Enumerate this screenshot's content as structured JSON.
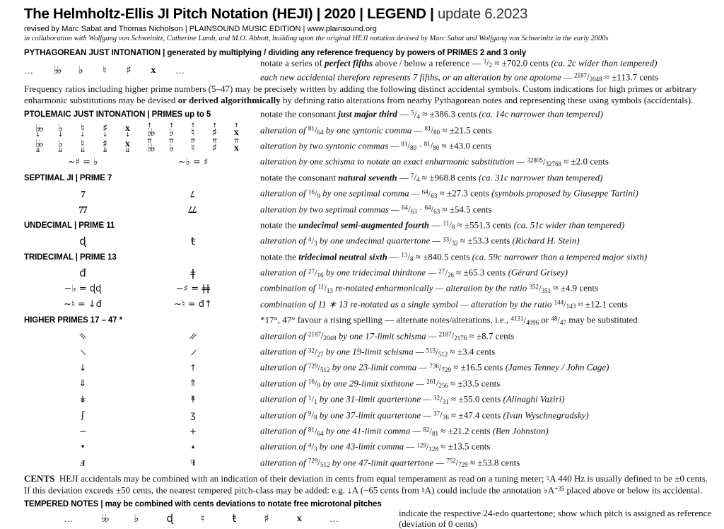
{
  "title": {
    "bold": "The Helmholtz-Ellis JI Pitch Notation (HEJI) | 2020 | LEGEND |",
    "update": "update 6.2023",
    "byline": "revised by Marc Sabat and Thomas Nicholson | PLAINSOUND MUSIC EDITION | www.plainsound.org",
    "collab": "in collaboration with Wolfgang von Schweinitz, Catherine Lamb, and M.O. Abbott, building upon the original HEJI notation devised by Marc Sabat and Wolfgang von Schweinitz in the early 2000s"
  },
  "legend": {
    "rows": [
      {
        "kind": "header",
        "name": "pythagorean-section-header",
        "label": "PYTHAGOREAN JUST INTONATION | generated by multiplying / dividing any reference frequency by powers of PRIMES 2 and 3 only"
      },
      {
        "kind": "sym",
        "layout": "spread",
        "cls": "tall",
        "name": "pythagorean-fifths-row",
        "cells": [
          {
            "t": "…"
          },
          {
            "n": "double-flat-icon",
            "g": "♭♭",
            "cls": "ff"
          },
          {
            "n": "flat-icon",
            "g": "♭"
          },
          {
            "n": "natural-icon",
            "g": "♮"
          },
          {
            "n": "sharp-icon",
            "g": "♯"
          },
          {
            "n": "double-sharp-icon",
            "g": "x",
            "cls": "ds"
          },
          {
            "t": "…"
          }
        ],
        "lines": [
          "notate a series of ***perfect fifths*** above / below a reference — {3/2} ≈ ±702.0 cents *(ca. 2c wider than tempered)*",
          "*each new accidental therefore represents 7 fifths, or an alteration by one apotome —* {2187/2048} ≈ ±113.7 cents"
        ]
      },
      {
        "kind": "para",
        "name": "intro-paragraph",
        "lines": [
          "Frequency ratios including higher prime numbers (5–47) may be precisely written by adding the following distinct accidental symbols. Custom indications for high primes or arbitrary",
          "enharmonic substitutions may be devised **or derived algorithmically** by defining ratio alterations from nearby Pythagorean notes and representing these using symbols (accidentals)."
        ]
      },
      {
        "kind": "labelrow",
        "name": "ptolemaic-section-row",
        "label": "PTOLEMAIC JUST INTONATION | PRIMES up to 5",
        "lines": [
          "notate the consonant ***just major third*** — {5/4} ≈ ±386.3 cents *(ca. 14c narrower than tempered)*"
        ]
      },
      {
        "kind": "sym",
        "layout": "pair",
        "name": "syntonic-comma-row",
        "left": [
          {
            "n": "double-flat-down-icon",
            "g": "♭♭",
            "cls": "ff",
            "bot": "↓"
          },
          {
            "n": "flat-down-icon",
            "g": "♭",
            "bot": "↓"
          },
          {
            "n": "natural-down-icon",
            "g": "♮",
            "bot": "↓"
          },
          {
            "n": "sharp-down-icon",
            "g": "♯",
            "bot": "↓"
          },
          {
            "n": "double-sharp-down-icon",
            "g": "x",
            "cls": "ds",
            "bot": "↓"
          }
        ],
        "right": [
          {
            "n": "double-flat-up-icon",
            "g": "♭♭",
            "cls": "ff",
            "top": "↑"
          },
          {
            "n": "flat-up-icon",
            "g": "♭",
            "top": "↑"
          },
          {
            "n": "natural-up-icon",
            "g": "♮",
            "top": "↑"
          },
          {
            "n": "sharp-up-icon",
            "g": "♯",
            "top": "↑"
          },
          {
            "n": "double-sharp-up-icon",
            "g": "x",
            "cls": "ds",
            "top": "↑"
          }
        ],
        "lines": [
          "*alteration of* {81/64} *by one syntonic comma —* {81/80} ≈ ±21.5 cents"
        ]
      },
      {
        "kind": "sym",
        "layout": "pair",
        "name": "two-syntonic-commas-row",
        "left": [
          {
            "n": "double-flat-double-down-icon",
            "g": "♭♭",
            "cls": "ff",
            "bot": "⇊"
          },
          {
            "n": "flat-double-down-icon",
            "g": "♭",
            "bot": "⇊"
          },
          {
            "n": "natural-double-down-icon",
            "g": "♮",
            "bot": "⇊"
          },
          {
            "n": "sharp-double-down-icon",
            "g": "♯",
            "bot": "⇊"
          },
          {
            "n": "double-sharp-double-down-icon",
            "g": "x",
            "cls": "ds",
            "bot": "⇊"
          }
        ],
        "right": [
          {
            "n": "double-flat-double-up-icon",
            "g": "♭♭",
            "cls": "ff",
            "top": "⇈"
          },
          {
            "n": "flat-double-up-icon",
            "g": "♭",
            "top": "⇈"
          },
          {
            "n": "natural-double-up-icon",
            "g": "♮",
            "top": "⇈"
          },
          {
            "n": "sharp-double-up-icon",
            "g": "♯",
            "top": "⇈"
          },
          {
            "n": "double-sharp-double-up-icon",
            "g": "x",
            "cls": "ds",
            "top": "⇈"
          }
        ],
        "lines": [
          "*alteration by two syntonic commas —* {81/80} · {81/80} ≈ ±43.0 cents"
        ]
      },
      {
        "kind": "sym",
        "layout": "eq",
        "name": "schisma-substitution-row",
        "left_eq": "~♯ = ♭",
        "right_eq": "~♭ = ♯",
        "lines": [
          "*alteration by one schisma to notate an exact enharmonic substitution —* {32805/32768} ≈ ±2.0 cents"
        ]
      },
      {
        "kind": "labelrow",
        "name": "septimal-section-row",
        "label": "SEPTIMAL JI | PRIME 7",
        "lines": [
          "notate the consonant ***natural seventh*** — {7/4} ≈ ±968.8 cents *(ca. 31c narrower than tempered)*"
        ]
      },
      {
        "kind": "sym",
        "layout": "pair",
        "name": "septimal-comma-row",
        "left": [
          {
            "n": "septimal-comma-down-icon",
            "g": "7",
            "cls": "sev"
          }
        ],
        "right": [
          {
            "n": "septimal-comma-up-icon",
            "g": "7",
            "cls": "sev rot"
          }
        ],
        "lines": [
          "*alteration of* {16/9} *by one septimal comma —* {64/63} ≈ ±27.3 cents *(symbols proposed by Giuseppe Tartini)*"
        ]
      },
      {
        "kind": "sym",
        "layout": "pair",
        "name": "two-septimal-commas-row",
        "left": [
          {
            "n": "two-septimal-commas-down-icon",
            "g": "77",
            "cls": "sev"
          }
        ],
        "right": [
          {
            "n": "two-septimal-commas-up-icon",
            "g": "77",
            "cls": "sev rot"
          }
        ],
        "lines": [
          "*alteration by two septimal commas —* {64/63} · {64/63} ≈ ±54.5 cents"
        ]
      },
      {
        "kind": "labelrow",
        "name": "undecimal-section-row",
        "label": "UNDECIMAL | PRIME 11",
        "lines": [
          "notate the ***undecimal semi-augmented fourth*** — {11/8} ≈ ±551.3 cents *(ca. 51c wider than tempered)*"
        ]
      },
      {
        "kind": "sym",
        "layout": "pair",
        "name": "undecimal-quartertone-row",
        "left": [
          {
            "n": "undecimal-quartertone-down-icon",
            "g": "ɖ"
          }
        ],
        "right": [
          {
            "n": "undecimal-quartertone-up-icon",
            "g": "ŧ"
          }
        ],
        "lines": [
          "*alteration of* {4/3} *by one undecimal quartertone —* {33/32} ≈ ±53.3 cents *(Richard H. Stein)*"
        ]
      },
      {
        "kind": "labelrow",
        "name": "tridecimal-section-row",
        "label": "TRIDECIMAL | PRIME 13",
        "lines": [
          "notate the ***tridecimal neutral sixth*** — {13/8} ≈ ±840.5 cents *(ca. 59c narrower than a tempered major sixth)*"
        ]
      },
      {
        "kind": "sym",
        "layout": "pair",
        "name": "tridecimal-thirdtone-row",
        "left": [
          {
            "n": "tridecimal-thirdtone-down-icon",
            "g": "đ"
          }
        ],
        "right": [
          {
            "n": "tridecimal-thirdtone-up-icon",
            "g": "ǂ"
          }
        ],
        "lines": [
          "*alteration of* {27/16} *by one tridecimal thirdtone —* {27/26} ≈ ±65.3 cents *(Gérard Grisey)*"
        ]
      },
      {
        "kind": "sym",
        "layout": "eq",
        "name": "ratio-352-351-row",
        "left_eq": "~♭ = ɖɖ",
        "right_eq": "~♯ = ǂǂ",
        "lines": [
          "*combination of* {11/13} *re-notated enharmonically — alteration by the ratio* {352/351} ≈ ±4.9 cents"
        ]
      },
      {
        "kind": "sym",
        "layout": "eq",
        "name": "ratio-144-143-row",
        "left_eq": "~♮ = ↓đ",
        "right_eq": "~♮ = đ↑",
        "lines": [
          "*combination of 11 ∗ 13 re-notated as a single symbol — alteration by the ratio* {144/143} ≈ ±12.1 cents"
        ]
      },
      {
        "kind": "labelrow",
        "name": "higher-primes-section-row",
        "label": "HIGHER PRIMES 17 – 47 *",
        "lines": [
          "*17°, 47° favour a rising spelling — alternate notes/alterations, i.e., {4131/4096} or {48/47} may be substituted"
        ]
      },
      {
        "kind": "sym",
        "layout": "pair",
        "name": "limit-17-row",
        "left": [
          {
            "n": "schisma-17-down-icon",
            "g": "\\\\",
            "cls": "tickL"
          }
        ],
        "right": [
          {
            "n": "schisma-17-up-icon",
            "g": "//",
            "cls": "tickR"
          }
        ],
        "lines": [
          "*alteration of* {2187/2048} *by one 17-limit schisma —* {2187/2176} ≈ ±8.7 cents"
        ]
      },
      {
        "kind": "sym",
        "layout": "pair",
        "name": "limit-19-row",
        "left": [
          {
            "n": "schisma-19-down-icon",
            "g": "\\",
            "cls": "tickL"
          }
        ],
        "right": [
          {
            "n": "schisma-19-up-icon",
            "g": "/",
            "cls": "tickR"
          }
        ],
        "lines": [
          "*alteration of* {32/27} *by one 19-limit schisma —* {513/512} ≈ ±3.4 cents"
        ]
      },
      {
        "kind": "sym",
        "layout": "pair",
        "name": "limit-23-row",
        "left": [
          {
            "n": "comma-23-down-icon",
            "g": "↓",
            "cls": "sm"
          }
        ],
        "right": [
          {
            "n": "comma-23-up-icon",
            "g": "↑",
            "cls": "sm"
          }
        ],
        "lines": [
          "*alteration of* {729/512} *by one 23-limit comma —* {736/729} ≈ ±16.5 cents *(James Tenney / John Cage)*"
        ]
      },
      {
        "kind": "sym",
        "layout": "pair",
        "name": "limit-29-row",
        "left": [
          {
            "n": "sixthtone-29-down-icon",
            "g": "⇓",
            "cls": "md"
          }
        ],
        "right": [
          {
            "n": "sixthtone-29-up-icon",
            "g": "⇑",
            "cls": "md"
          }
        ],
        "lines": [
          "*alteration of* {16/9} *by one 29-limit sixthtone —* {261/256} ≈ ±33.5 cents"
        ]
      },
      {
        "kind": "sym",
        "layout": "pair",
        "name": "limit-31-row",
        "left": [
          {
            "n": "quartertone-31-down-icon",
            "g": "↡",
            "cls": "md"
          }
        ],
        "right": [
          {
            "n": "quartertone-31-up-icon",
            "g": "↟",
            "cls": "md"
          }
        ],
        "lines": [
          "*alteration of* {1/1} *by one 31-limit quartertone —* {32/31} ≈ ±55.0 cents *(Alinaghi Vaziri)*"
        ]
      },
      {
        "kind": "sym",
        "layout": "pair",
        "name": "limit-37-row",
        "left": [
          {
            "n": "quartertone-37-down-icon",
            "g": "ʃ",
            "cls": "md"
          }
        ],
        "right": [
          {
            "n": "quartertone-37-up-icon",
            "g": "ʒ",
            "cls": "md"
          }
        ],
        "lines": [
          "*alteration of* {9/8} *by one 37-limit quartertone —* {37/36} ≈ ±47.4 cents *(Ivan Wyschnegradsky)*"
        ]
      },
      {
        "kind": "sym",
        "layout": "pair",
        "name": "limit-41-row",
        "left": [
          {
            "n": "comma-41-down-icon",
            "g": "−",
            "cls": "sm"
          }
        ],
        "right": [
          {
            "n": "comma-41-up-icon",
            "g": "+",
            "cls": "sm"
          }
        ],
        "lines": [
          "*alteration of* {81/64} *by one 41-limit comma —* {82/81} ≈ ±21.2 cents *(Ben Johnston)*"
        ]
      },
      {
        "kind": "sym",
        "layout": "pair",
        "name": "limit-43-row",
        "left": [
          {
            "n": "comma-43-down-icon",
            "g": "▾",
            "cls": "tri"
          }
        ],
        "right": [
          {
            "n": "comma-43-up-icon",
            "g": "▴",
            "cls": "tri"
          }
        ],
        "lines": [
          "*alteration of* {4/3} *by one 43-limit comma —* {129/128} ≈ ±13.5 cents"
        ]
      },
      {
        "kind": "sym",
        "layout": "pair",
        "name": "limit-47-row",
        "left": [
          {
            "n": "quartertone-47-down-icon",
            "g": "F",
            "cls": "f47 rot"
          }
        ],
        "right": [
          {
            "n": "quartertone-47-up-icon",
            "g": "F",
            "cls": "f47 mir"
          }
        ],
        "lines": [
          "*alteration of* {729/512} *by one 47-limit quartertone —* {752/729} ≈ ±53.8 cents"
        ]
      },
      {
        "kind": "para",
        "name": "cents-paragraph",
        "lines": [
          "**CENTS**&nbsp; HEJI accidentals may be combined with an indication of their deviation in cents from equal temperament as read on a tuning meter; ♮A 440 Hz is usually defined to be ±0 cents.",
          "If this deviation exceeds ±50 cents, the nearest tempered pitch-class may be added: e.g. ↓A (−65 cents from ♮A) could include the annotation ♭A^+35^ placed above or below its accidental."
        ]
      },
      {
        "kind": "header",
        "name": "tempered-section-header",
        "label": "TEMPERED NOTES | may be combined with cents deviations to notate free microtonal pitches"
      },
      {
        "kind": "sym",
        "layout": "spread",
        "cls": "wide",
        "name": "tempered-notes-row",
        "cells": [
          {
            "t": "…"
          },
          {
            "n": "double-flat-icon",
            "g": "♭♭",
            "cls": "ff"
          },
          {
            "n": "flat-icon",
            "g": "♭"
          },
          {
            "n": "quarter-flat-icon",
            "g": "ɖ"
          },
          {
            "n": "natural-icon",
            "g": "♮"
          },
          {
            "n": "quarter-sharp-icon",
            "g": "ŧ"
          },
          {
            "n": "sharp-icon",
            "g": "♯"
          },
          {
            "n": "double-sharp-icon",
            "g": "x",
            "cls": "ds"
          },
          {
            "t": "…"
          }
        ],
        "lines": [
          "indicate the respective 24-edo quartertone; show which pitch is assigned as reference (deviation of 0 cents)"
        ]
      }
    ]
  }
}
